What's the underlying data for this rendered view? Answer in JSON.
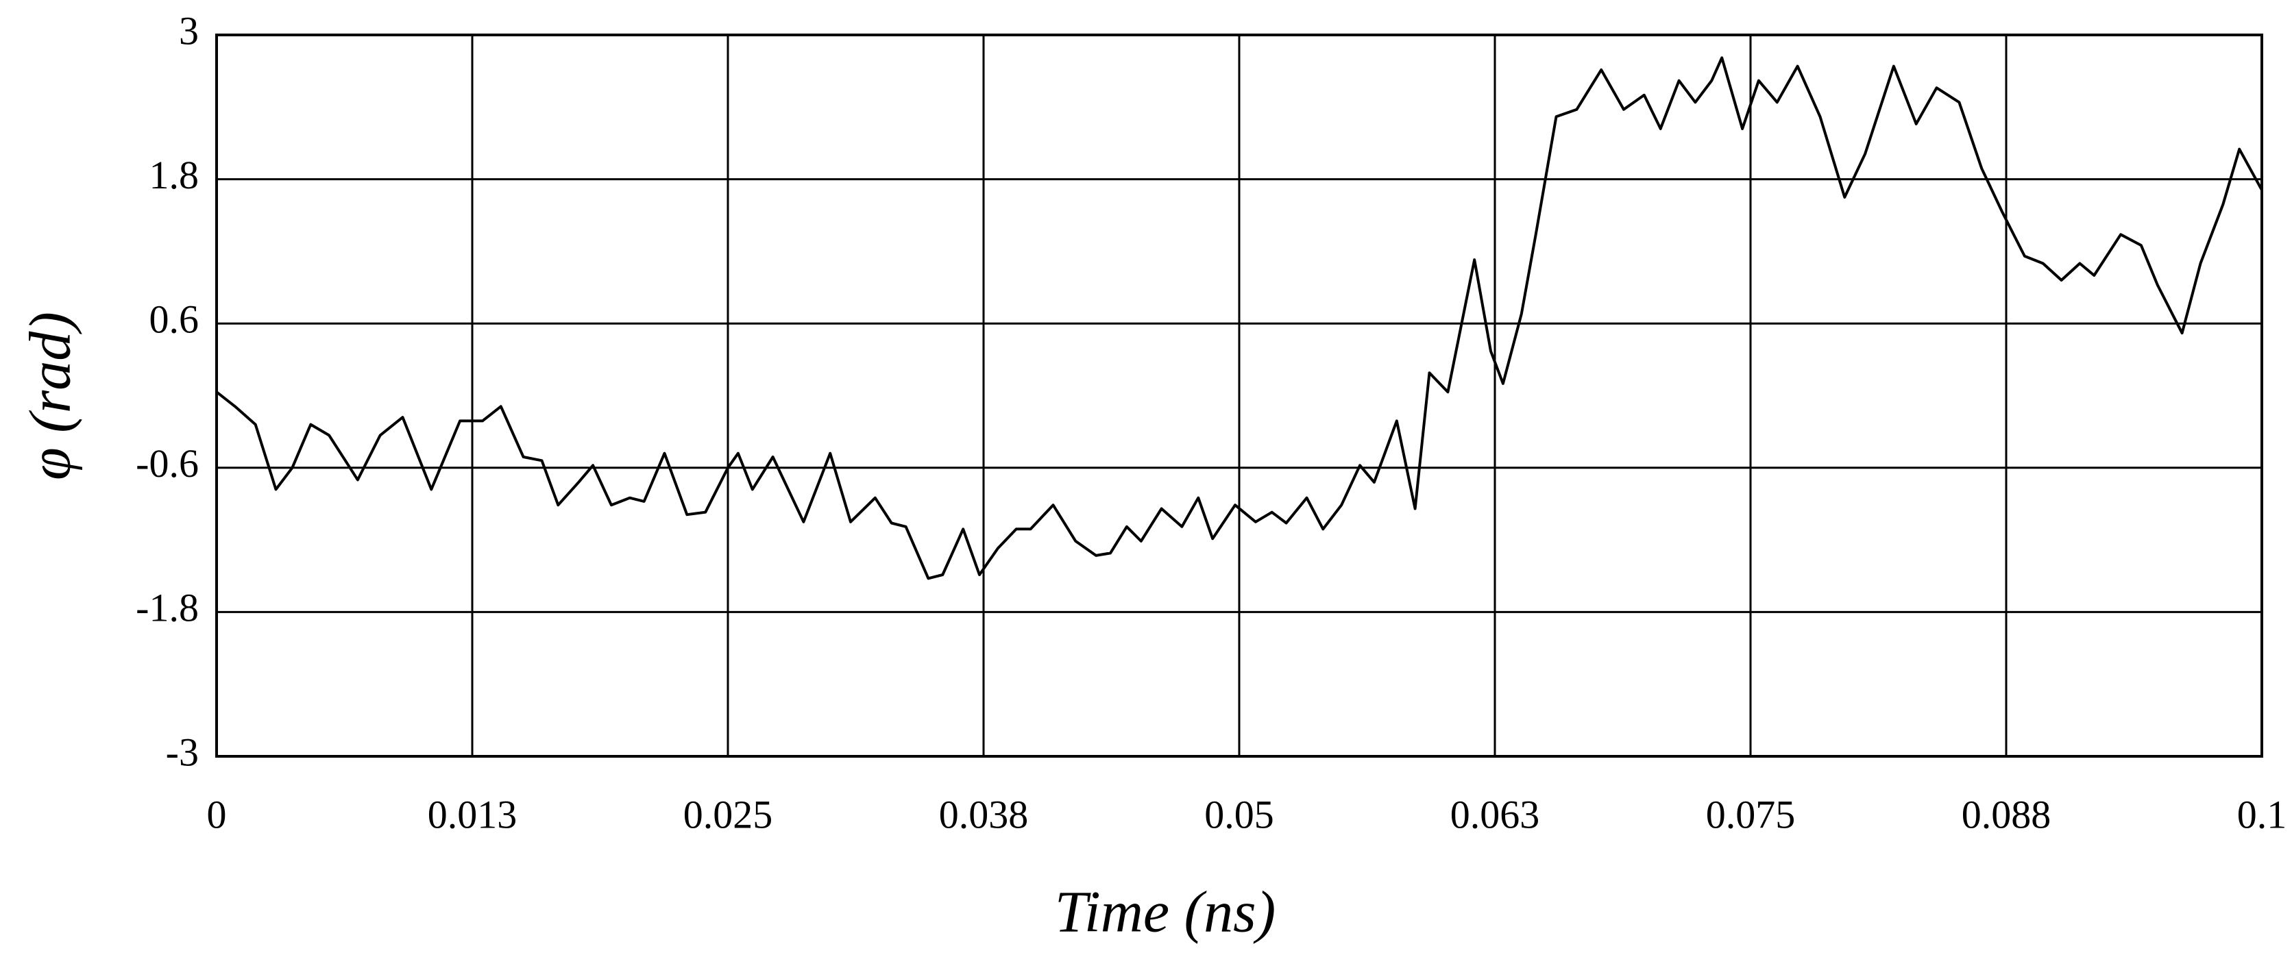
{
  "chart_data": {
    "type": "line",
    "xlabel": "Time (ns)",
    "ylabel": "φ (rad)",
    "xlim": [
      0,
      0.1
    ],
    "ylim": [
      -3,
      3
    ],
    "xticks": [
      0,
      {
        "value": 0.0125,
        "label": "0.013"
      },
      0.025,
      {
        "value": 0.0375,
        "label": "0.038"
      },
      0.05,
      {
        "value": 0.0625,
        "label": "0.063"
      },
      0.075,
      {
        "value": 0.0875,
        "label": "0.088"
      },
      0.1
    ],
    "yticks": [
      -3,
      -1.8,
      -0.6,
      0.6,
      1.8,
      3
    ],
    "grid": true,
    "series": [
      {
        "color": "#000000",
        "x": [
          0,
          0.0009,
          0.0019,
          0.0029,
          0.0037,
          0.0046,
          0.0055,
          0.0069,
          0.008,
          0.0091,
          0.0105,
          0.0119,
          0.013,
          0.0139,
          0.015,
          0.0159,
          0.0167,
          0.0177,
          0.0184,
          0.0193,
          0.0202,
          0.0209,
          0.0219,
          0.023,
          0.0239,
          0.025,
          0.0255,
          0.0262,
          0.0272,
          0.0287,
          0.03,
          0.031,
          0.0322,
          0.033,
          0.0337,
          0.0348,
          0.0355,
          0.0365,
          0.0373,
          0.0382,
          0.0391,
          0.0398,
          0.0409,
          0.042,
          0.043,
          0.0437,
          0.0445,
          0.0452,
          0.0462,
          0.0472,
          0.048,
          0.0487,
          0.0498,
          0.0508,
          0.0516,
          0.0523,
          0.0533,
          0.0541,
          0.055,
          0.0559,
          0.0566,
          0.0577,
          0.0586,
          0.0593,
          0.0602,
          0.0615,
          0.0623,
          0.0629,
          0.0638,
          0.0645,
          0.0655,
          0.0665,
          0.0677,
          0.0688,
          0.0698,
          0.0706,
          0.0715,
          0.0723,
          0.0731,
          0.0736,
          0.0746,
          0.0754,
          0.0763,
          0.0773,
          0.0784,
          0.0796,
          0.0806,
          0.082,
          0.0831,
          0.0841,
          0.0852,
          0.0863,
          0.0873,
          0.0884,
          0.0893,
          0.0902,
          0.0911,
          0.0918,
          0.0931,
          0.0941,
          0.0949,
          0.0961,
          0.097,
          0.0981,
          0.0989,
          0.1
        ],
        "values": [
          0.03,
          -0.09,
          -0.24,
          -0.78,
          -0.6,
          -0.24,
          -0.33,
          -0.7,
          -0.33,
          -0.18,
          -0.78,
          -0.21,
          -0.21,
          -0.09,
          -0.51,
          -0.54,
          -0.91,
          -0.72,
          -0.58,
          -0.91,
          -0.85,
          -0.88,
          -0.48,
          -0.99,
          -0.97,
          -0.6,
          -0.48,
          -0.78,
          -0.51,
          -1.05,
          -0.48,
          -1.05,
          -0.85,
          -1.06,
          -1.09,
          -1.52,
          -1.49,
          -1.11,
          -1.49,
          -1.27,
          -1.11,
          -1.11,
          -0.91,
          -1.21,
          -1.33,
          -1.31,
          -1.09,
          -1.21,
          -0.94,
          -1.09,
          -0.85,
          -1.19,
          -0.91,
          -1.05,
          -0.97,
          -1.06,
          -0.85,
          -1.11,
          -0.91,
          -0.58,
          -0.72,
          -0.21,
          -0.94,
          0.19,
          0.03,
          1.13,
          0.37,
          0.1,
          0.68,
          1.34,
          2.32,
          2.38,
          2.71,
          2.38,
          2.5,
          2.22,
          2.62,
          2.44,
          2.62,
          2.81,
          2.22,
          2.62,
          2.44,
          2.74,
          2.32,
          1.65,
          2.01,
          2.74,
          2.26,
          2.56,
          2.44,
          1.89,
          1.53,
          1.16,
          1.1,
          0.96,
          1.1,
          1.0,
          1.34,
          1.25,
          0.92,
          0.52,
          1.1,
          1.59,
          2.05,
          1.71
        ]
      }
    ]
  }
}
